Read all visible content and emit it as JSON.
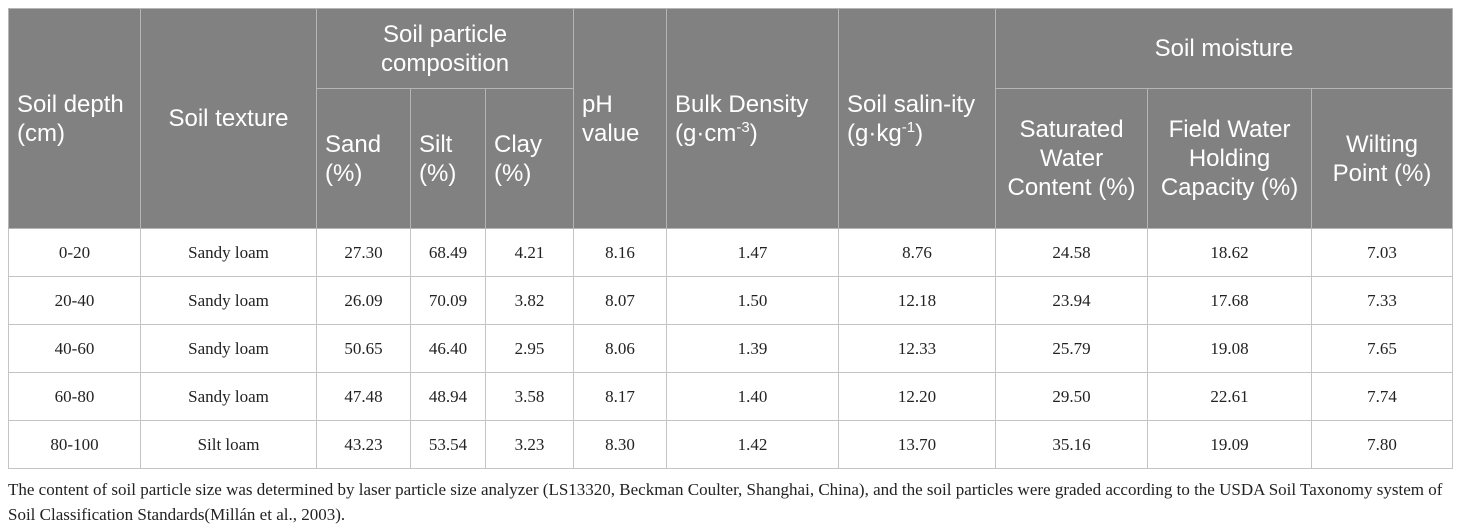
{
  "table": {
    "headers": {
      "depth": "Soil depth (cm)",
      "texture": "Soil texture",
      "particle": "Soil particle composition",
      "sand": "Sand (%)",
      "silt": "Silt (%)",
      "clay": "Clay (%)",
      "ph": "pH value",
      "bulk": {
        "text": "Bulk Density (g·cm",
        "sup": "-3",
        "end": ")"
      },
      "salinity": {
        "text": "Soil salin-ity (g·kg",
        "sup": "-1",
        "end": ")"
      },
      "moisture": "Soil moisture",
      "saturated": "Saturated Water Content (%)",
      "field": "Field Water Holding Capacity (%)",
      "wilting": "Wilting Point (%)"
    },
    "rows": [
      [
        "0-20",
        "Sandy loam",
        "27.30",
        "68.49",
        "4.21",
        "8.16",
        "1.47",
        "8.76",
        "24.58",
        "18.62",
        "7.03"
      ],
      [
        "20-40",
        "Sandy loam",
        "26.09",
        "70.09",
        "3.82",
        "8.07",
        "1.50",
        "12.18",
        "23.94",
        "17.68",
        "7.33"
      ],
      [
        "40-60",
        "Sandy loam",
        "50.65",
        "46.40",
        "2.95",
        "8.06",
        "1.39",
        "12.33",
        "25.79",
        "19.08",
        "7.65"
      ],
      [
        "60-80",
        "Sandy loam",
        "47.48",
        "48.94",
        "3.58",
        "8.17",
        "1.40",
        "12.20",
        "29.50",
        "22.61",
        "7.74"
      ],
      [
        "80-100",
        "Silt loam",
        "43.23",
        "53.54",
        "3.23",
        "8.30",
        "1.42",
        "13.70",
        "35.16",
        "19.09",
        "7.80"
      ]
    ]
  },
  "footnote": "The content of soil particle size was determined by laser particle size analyzer (LS13320, Beckman Coulter, Shanghai, China), and the soil particles were graded according to the USDA Soil Taxonomy system of Soil Classification Standards(Millán et al., 2003)."
}
